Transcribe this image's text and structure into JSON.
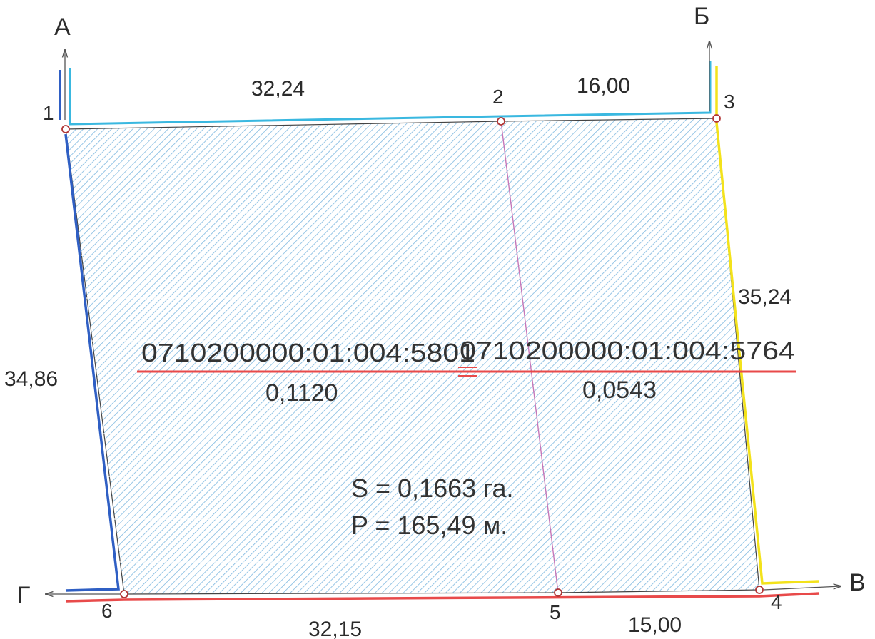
{
  "plot": {
    "points": [
      "1",
      "2",
      "3",
      "4",
      "5",
      "6"
    ],
    "directions": {
      "north_west": "А",
      "north_east": "Б",
      "south_east": "В",
      "south_west": "Г"
    },
    "dimensions": {
      "side_1_2": "32,24",
      "side_2_3": "16,00",
      "side_3_4": "35,24",
      "side_4_5": "15,00",
      "side_5_6": "32,15",
      "side_6_1": "34,86"
    },
    "parcels": [
      {
        "cadastral_number": "0710200000:01:004:5801",
        "area": "0,1120"
      },
      {
        "cadastral_number": "0710200000:01:004:5764",
        "area": "0,0543"
      }
    ],
    "total_area": "S = 0,1663 га.",
    "perimeter": "P = 165,49 м."
  },
  "colors": {
    "hatch": "#7fb9e0",
    "border_north": "#3ab8e0",
    "border_west": "#2f5fc4",
    "border_east": "#f3e21b",
    "border_south": "#e84a4a",
    "underline": "#e84a4a"
  }
}
